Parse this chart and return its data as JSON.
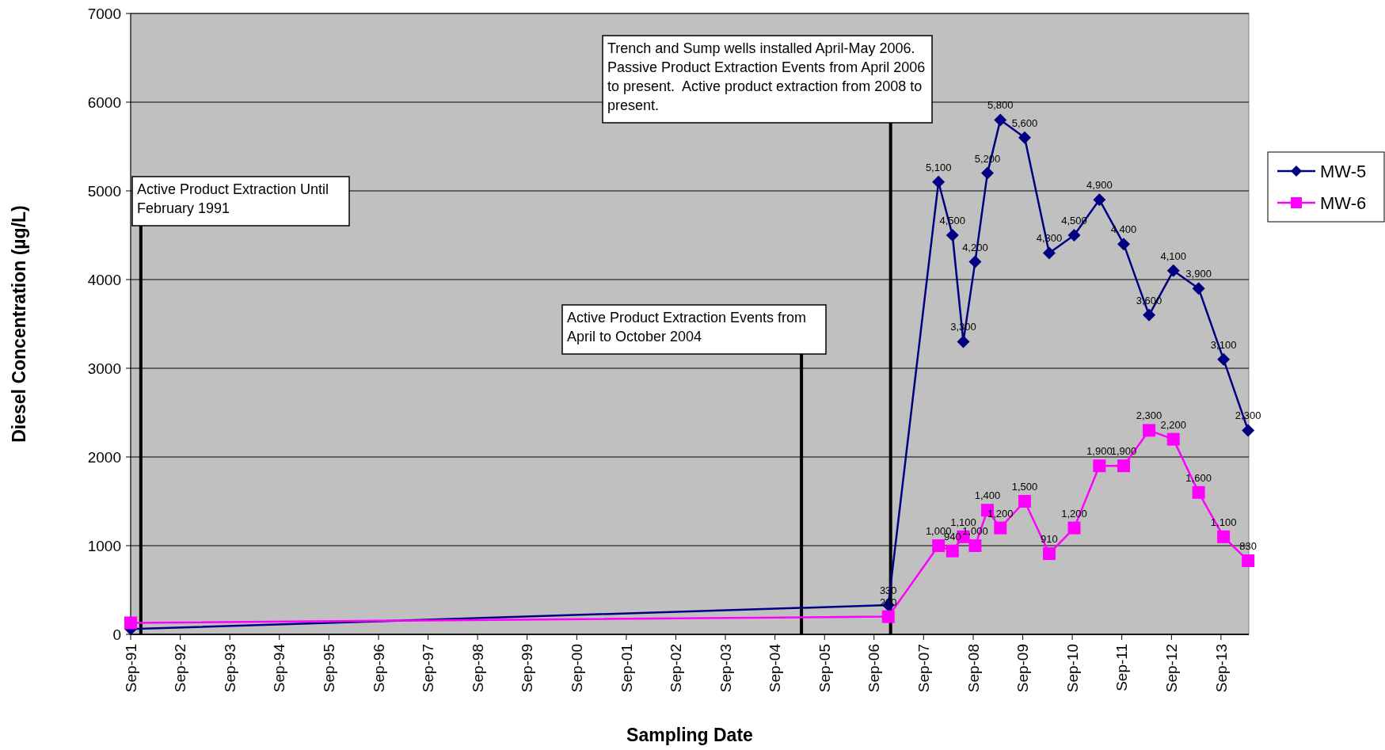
{
  "chart_data": {
    "type": "line",
    "xlabel": "Sampling Date",
    "ylabel": "Diesel Concentration (µg/L)",
    "x": [
      "1991-09-01",
      "2006-12-15",
      "2007-12-20",
      "2008-04-01",
      "2008-06-20",
      "2008-09-15",
      "2008-12-15",
      "2009-03-20",
      "2009-09-15",
      "2010-03-15",
      "2010-09-15",
      "2011-03-20",
      "2011-09-15",
      "2012-03-20",
      "2012-09-15",
      "2013-03-20",
      "2013-09-20",
      "2014-03-20"
    ],
    "series": [
      {
        "name": "MW-5",
        "color": "#000080",
        "marker": "diamond",
        "values": [
          60,
          330,
          5100,
          4500,
          3300,
          4200,
          5200,
          5800,
          5600,
          4300,
          4500,
          4900,
          4400,
          3600,
          4100,
          3900,
          3100,
          2300
        ],
        "value_labels": [
          null,
          "330",
          "5,100",
          "4,500",
          "3,300",
          "4,200",
          "5,200",
          "5,800",
          "5,600",
          "4,300",
          "4,500",
          "4,900",
          "4,400",
          "3,600",
          "4,100",
          "3,900",
          "3,100",
          "2,300"
        ]
      },
      {
        "name": "MW-6",
        "color": "#ff00ff",
        "marker": "square",
        "values": [
          130,
          200,
          1000,
          940,
          1100,
          1000,
          1400,
          1200,
          1500,
          910,
          1200,
          1900,
          1900,
          2300,
          2200,
          1600,
          1100,
          830
        ],
        "value_labels": [
          null,
          "200",
          "1,000",
          "940",
          "1,100",
          "1,000",
          "1,400",
          "1,200",
          "1,500",
          "910",
          "1,200",
          "1,900",
          "1,900",
          "2,300",
          "2,200",
          "1,600",
          "1,100",
          "830"
        ]
      }
    ],
    "xlim": [
      "1991-09-01",
      "2014-03-25"
    ],
    "xticks": [
      {
        "value": "1991-09-01",
        "label": "Sep-91"
      },
      {
        "value": "1992-09-01",
        "label": "Sep-92"
      },
      {
        "value": "1993-09-01",
        "label": "Sep-93"
      },
      {
        "value": "1994-09-01",
        "label": "Sep-94"
      },
      {
        "value": "1995-09-01",
        "label": "Sep-95"
      },
      {
        "value": "1996-09-01",
        "label": "Sep-96"
      },
      {
        "value": "1997-09-01",
        "label": "Sep-97"
      },
      {
        "value": "1998-09-01",
        "label": "Sep-98"
      },
      {
        "value": "1999-09-01",
        "label": "Sep-99"
      },
      {
        "value": "2000-09-01",
        "label": "Sep-00"
      },
      {
        "value": "2001-09-01",
        "label": "Sep-01"
      },
      {
        "value": "2002-09-01",
        "label": "Sep-02"
      },
      {
        "value": "2003-09-01",
        "label": "Sep-03"
      },
      {
        "value": "2004-09-01",
        "label": "Sep-04"
      },
      {
        "value": "2005-09-01",
        "label": "Sep-05"
      },
      {
        "value": "2006-09-01",
        "label": "Sep-06"
      },
      {
        "value": "2007-09-01",
        "label": "Sep-07"
      },
      {
        "value": "2008-09-01",
        "label": "Sep-08"
      },
      {
        "value": "2009-09-01",
        "label": "Sep-09"
      },
      {
        "value": "2010-09-01",
        "label": "Sep-10"
      },
      {
        "value": "2011-09-01",
        "label": "Sep-11"
      },
      {
        "value": "2012-09-01",
        "label": "Sep-12"
      },
      {
        "value": "2013-09-01",
        "label": "Sep-13"
      }
    ],
    "ylim": [
      0,
      7000
    ],
    "yticks": [
      0,
      1000,
      2000,
      3000,
      4000,
      5000,
      6000,
      7000
    ],
    "grid": "y",
    "legend": "right",
    "line_style": "solid",
    "ref_lines": [
      {
        "axis": "x",
        "value": "1991-11-15",
        "label": "Active Product Extraction Until February 1991",
        "color": "#000000"
      },
      {
        "axis": "x",
        "value": "2005-03-15",
        "label": "Active Product Extraction Events from April to October 2004",
        "color": "#000000"
      },
      {
        "axis": "x",
        "value": "2007-01-01",
        "label": "Trench and Sump wells installed April-May 2006.  Passive Product Extraction Events from April 2006 to present.  Active product extraction from 2008 to present.",
        "color": "#000000"
      }
    ]
  }
}
